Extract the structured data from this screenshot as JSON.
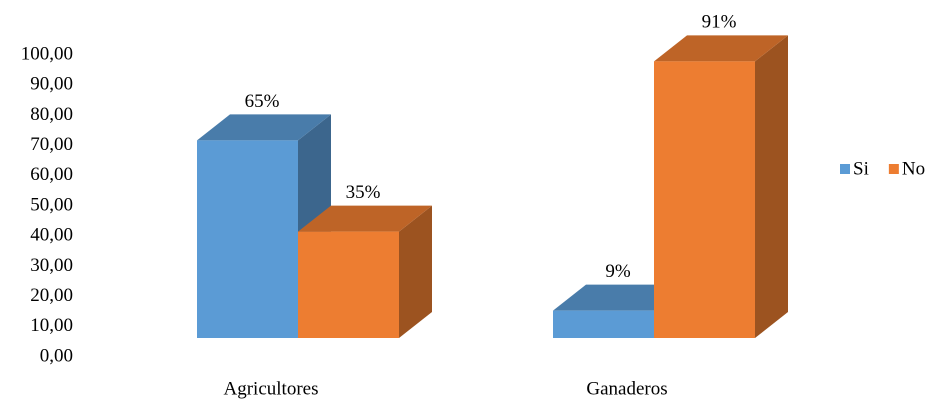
{
  "chart_data": {
    "type": "bar3d",
    "categories": [
      "Agricultores",
      "Ganaderos"
    ],
    "series": [
      {
        "name": "Si",
        "color": "#5b9bd5",
        "values": [
          65,
          9
        ],
        "value_labels": [
          "65%",
          "9%"
        ]
      },
      {
        "name": "No",
        "color": "#ed7d31",
        "values": [
          35,
          91
        ],
        "value_labels": [
          "35%",
          "91%"
        ]
      }
    ],
    "ylim": [
      0,
      100
    ],
    "yticks": [
      {
        "value": 0,
        "label": "0,00"
      },
      {
        "value": 10,
        "label": "10,00"
      },
      {
        "value": 20,
        "label": "20,00"
      },
      {
        "value": 30,
        "label": "30,00"
      },
      {
        "value": 40,
        "label": "40,00"
      },
      {
        "value": 50,
        "label": "50,00"
      },
      {
        "value": 60,
        "label": "60,00"
      },
      {
        "value": 70,
        "label": "70,00"
      },
      {
        "value": 80,
        "label": "80,00"
      },
      {
        "value": 90,
        "label": "90,00"
      },
      {
        "value": 100,
        "label": "100,00"
      }
    ],
    "legend": "right"
  }
}
